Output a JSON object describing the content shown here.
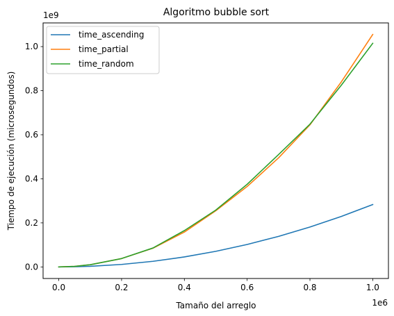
{
  "chart_data": {
    "type": "line",
    "title": "Algoritmo bubble sort",
    "xlabel": "Tamaño del arreglo",
    "ylabel": "Tiempo de ejecución (microsegundos)",
    "x_offset_label": "1e6",
    "y_offset_label": "1e9",
    "x_multiplier": 1000000,
    "y_multiplier": 1000000000,
    "xlim": [
      -50000,
      1050000
    ],
    "ylim": [
      -52500000,
      1107500000
    ],
    "x_ticks": [
      0,
      200000,
      400000,
      600000,
      800000,
      1000000
    ],
    "x_tick_labels": [
      "0.0",
      "0.2",
      "0.4",
      "0.6",
      "0.8",
      "1.0"
    ],
    "y_ticks": [
      0,
      200000000,
      400000000,
      600000000,
      800000000,
      1000000000
    ],
    "y_tick_labels": [
      "0.0",
      "0.2",
      "0.4",
      "0.6",
      "0.8",
      "1.0"
    ],
    "legend_position": "top-left",
    "grid": false,
    "x": [
      0,
      50000,
      100000,
      200000,
      300000,
      400000,
      500000,
      600000,
      700000,
      800000,
      900000,
      1000000
    ],
    "series": [
      {
        "name": "time_ascending",
        "color": "#1f77b4",
        "values": [
          0,
          700000,
          2800000,
          11300000,
          25500000,
          45300000,
          70800000,
          102000000,
          138700000,
          181200000,
          229300000,
          283000000
        ]
      },
      {
        "name": "time_partial",
        "color": "#ff7f0e",
        "values": [
          0,
          2600000,
          10000000,
          38000000,
          85000000,
          158000000,
          255000000,
          365000000,
          495000000,
          645000000,
          840000000,
          1055000000
        ]
      },
      {
        "name": "time_random",
        "color": "#2ca02c",
        "values": [
          0,
          2600000,
          10000000,
          38000000,
          86000000,
          165000000,
          258000000,
          375000000,
          510000000,
          648000000,
          825000000,
          1015000000
        ]
      }
    ]
  }
}
